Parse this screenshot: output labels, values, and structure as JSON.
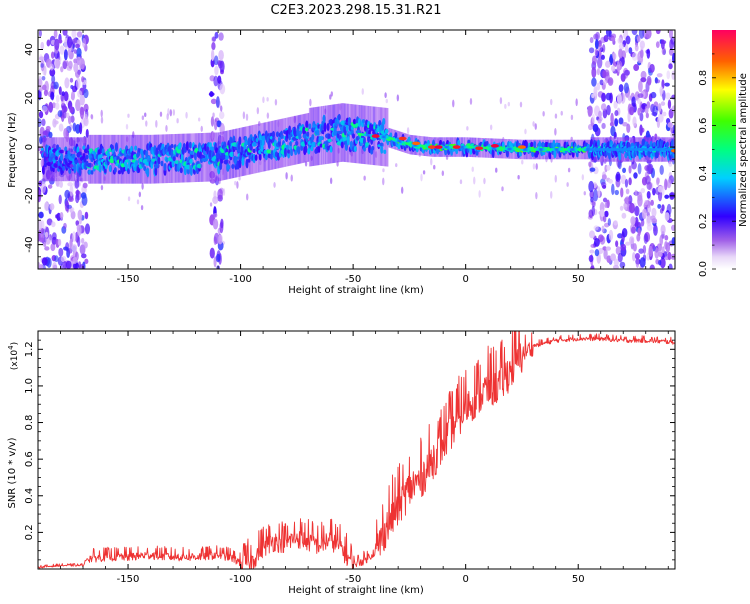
{
  "title": "C2E3.2023.298.15.31.R21",
  "colors": {
    "snr_line": "#ee3333",
    "axis": "#000000",
    "background": "#ffffff"
  },
  "colorbar": {
    "label": "Normalized spectral amplitude",
    "ticks": [
      "0.0",
      "0.2",
      "0.4",
      "0.6",
      "0.8"
    ],
    "range": [
      0,
      1
    ],
    "colormap": "rainbow"
  },
  "chart_data": [
    {
      "type": "heatmap",
      "xlabel": "Height of straight line (km)",
      "ylabel": "Frequency (Hz)",
      "xlim": [
        -190,
        93
      ],
      "ylim": [
        -50,
        48
      ],
      "xticks": [
        -150,
        -100,
        -50,
        0,
        50
      ],
      "xtick_labels": [
        "-150",
        "-100",
        "-50",
        "0",
        "50"
      ],
      "yticks": [
        -40,
        -20,
        0,
        20,
        40
      ],
      "ytick_labels": [
        "-40",
        "-20",
        "0",
        "20",
        "40"
      ],
      "grid": false,
      "band_center_hz": [
        {
          "x": -165,
          "f": -5
        },
        {
          "x": -140,
          "f": -5
        },
        {
          "x": -110,
          "f": -4
        },
        {
          "x": -90,
          "f": 0
        },
        {
          "x": -70,
          "f": 4
        },
        {
          "x": -55,
          "f": 6
        },
        {
          "x": -45,
          "f": 5
        },
        {
          "x": -35,
          "f": 4
        },
        {
          "x": -25,
          "f": 1
        },
        {
          "x": -15,
          "f": 0
        },
        {
          "x": 0,
          "f": 0
        },
        {
          "x": 25,
          "f": -1
        },
        {
          "x": 55,
          "f": -1
        },
        {
          "x": 93,
          "f": -1
        }
      ]
    },
    {
      "type": "line",
      "xlabel": "Height of straight line (km)",
      "ylabel": "SNR (10 * v/v)",
      "scale_label": "(x10",
      "scale_exp": "4",
      "xlim": [
        -190,
        93
      ],
      "ylim": [
        0,
        1.3
      ],
      "xticks": [
        -150,
        -100,
        -50,
        0,
        50
      ],
      "xtick_labels": [
        "-150",
        "-100",
        "-50",
        "0",
        "50"
      ],
      "yticks": [
        0.2,
        0.4,
        0.6,
        0.8,
        1.0,
        1.2
      ],
      "ytick_labels": [
        "0.2",
        "0.4",
        "0.6",
        "0.8",
        "1.0",
        "1.2"
      ],
      "grid": false,
      "series": [
        {
          "x": [
            -190,
            -180,
            -170,
            -168,
            -160,
            -150,
            -140,
            -130,
            -120,
            -110,
            -105,
            -100,
            -95,
            -90,
            -85,
            -80,
            -75,
            -70,
            -65,
            -60,
            -55,
            -50,
            -45,
            -40,
            -35,
            -30,
            -25,
            -20,
            -15,
            -10,
            -5,
            0,
            5,
            10,
            15,
            20,
            25,
            30,
            40,
            50,
            60,
            70,
            80,
            93
          ],
          "y": [
            0.01,
            0.02,
            0.02,
            0.06,
            0.07,
            0.07,
            0.08,
            0.07,
            0.07,
            0.08,
            0.07,
            0.04,
            0.05,
            0.13,
            0.16,
            0.15,
            0.18,
            0.16,
            0.14,
            0.17,
            0.12,
            0.03,
            0.05,
            0.1,
            0.25,
            0.35,
            0.45,
            0.5,
            0.6,
            0.7,
            0.8,
            0.9,
            0.95,
            1.0,
            1.02,
            1.1,
            1.18,
            1.22,
            1.25,
            1.26,
            1.26,
            1.25,
            1.25,
            1.24
          ]
        }
      ]
    }
  ]
}
